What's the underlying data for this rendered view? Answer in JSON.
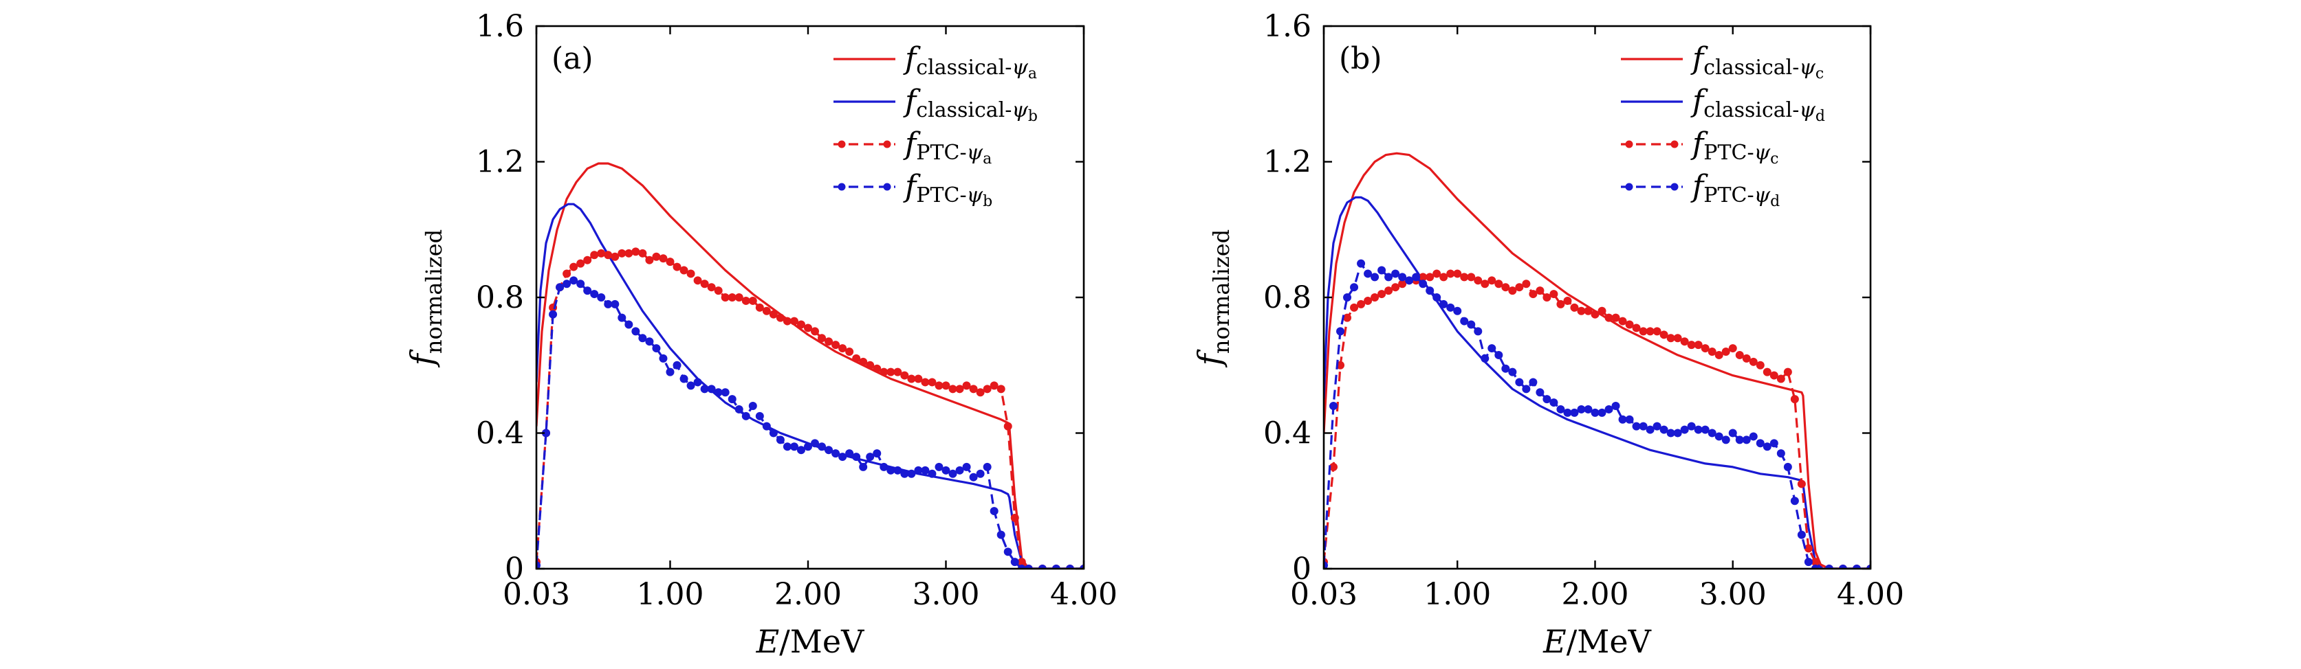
{
  "chart_data": [
    {
      "type": "line",
      "panel_label": "(a)",
      "xlabel_var": "E",
      "xlabel_unit": "/MeV",
      "ylabel_main": "f",
      "ylabel_sub": "normalized",
      "xlim": [
        0.03,
        4.0
      ],
      "ylim": [
        0,
        1.6
      ],
      "xticks": [
        0.03,
        1.0,
        2.0,
        3.0,
        4.0
      ],
      "xtick_labels": [
        "0.03",
        "1.00",
        "2.00",
        "3.00",
        "4.00"
      ],
      "yticks": [
        0,
        0.4,
        0.8,
        1.2,
        1.6
      ],
      "ytick_labels": [
        "0",
        "0.4",
        "0.8",
        "1.2",
        "1.6"
      ],
      "legend_position": "top-right",
      "series": [
        {
          "name": "f classical-ψa",
          "name_main": "f",
          "name_sub": "classical-",
          "name_psi": "ψ",
          "name_psi_sub": "a",
          "color": "#e41a1c",
          "style": "solid",
          "markers": false,
          "x": [
            0.03,
            0.07,
            0.12,
            0.18,
            0.25,
            0.32,
            0.4,
            0.48,
            0.55,
            0.65,
            0.8,
            1.0,
            1.2,
            1.4,
            1.6,
            1.8,
            2.0,
            2.2,
            2.4,
            2.6,
            2.8,
            3.0,
            3.2,
            3.4,
            3.45,
            3.46,
            3.5,
            3.55,
            3.6,
            4.0
          ],
          "y": [
            0.42,
            0.7,
            0.88,
            1.0,
            1.09,
            1.14,
            1.18,
            1.195,
            1.195,
            1.18,
            1.13,
            1.04,
            0.96,
            0.88,
            0.81,
            0.75,
            0.69,
            0.64,
            0.6,
            0.56,
            0.53,
            0.5,
            0.47,
            0.44,
            0.43,
            0.42,
            0.21,
            0.03,
            0.0,
            0.0
          ]
        },
        {
          "name": "f classical-ψb",
          "name_main": "f",
          "name_sub": "classical-",
          "name_psi": "ψ",
          "name_psi_sub": "b",
          "color": "#1919d2",
          "style": "solid",
          "markers": false,
          "x": [
            0.03,
            0.06,
            0.1,
            0.15,
            0.2,
            0.26,
            0.3,
            0.35,
            0.42,
            0.5,
            0.65,
            0.8,
            1.0,
            1.2,
            1.4,
            1.6,
            1.8,
            2.0,
            2.2,
            2.4,
            2.6,
            2.8,
            3.0,
            3.2,
            3.4,
            3.45,
            3.46,
            3.5,
            3.55,
            3.6,
            4.0
          ],
          "y": [
            0.55,
            0.82,
            0.96,
            1.03,
            1.06,
            1.075,
            1.075,
            1.06,
            1.02,
            0.96,
            0.86,
            0.76,
            0.65,
            0.56,
            0.49,
            0.44,
            0.4,
            0.37,
            0.34,
            0.32,
            0.3,
            0.28,
            0.265,
            0.25,
            0.23,
            0.22,
            0.21,
            0.1,
            0.02,
            0.0,
            0.0
          ]
        },
        {
          "name": "f PTC-ψa",
          "name_main": "f",
          "name_sub": "PTC-",
          "name_psi": "ψ",
          "name_psi_sub": "a",
          "color": "#e41a1c",
          "style": "dashed",
          "markers": true,
          "x": [
            0.03,
            0.1,
            0.15,
            0.2,
            0.25,
            0.3,
            0.35,
            0.4,
            0.45,
            0.5,
            0.55,
            0.6,
            0.65,
            0.7,
            0.75,
            0.8,
            0.85,
            0.9,
            0.95,
            1.0,
            1.05,
            1.1,
            1.15,
            1.2,
            1.25,
            1.3,
            1.35,
            1.4,
            1.45,
            1.5,
            1.55,
            1.6,
            1.65,
            1.7,
            1.75,
            1.8,
            1.85,
            1.9,
            1.95,
            2.0,
            2.05,
            2.1,
            2.15,
            2.2,
            2.25,
            2.3,
            2.35,
            2.4,
            2.45,
            2.5,
            2.55,
            2.6,
            2.65,
            2.7,
            2.75,
            2.8,
            2.85,
            2.9,
            2.95,
            3.0,
            3.05,
            3.1,
            3.15,
            3.2,
            3.25,
            3.3,
            3.35,
            3.4,
            3.45,
            3.5,
            3.55,
            3.6,
            3.7,
            3.8,
            3.9,
            4.0
          ],
          "y": [
            0.02,
            0.4,
            0.77,
            0.83,
            0.87,
            0.89,
            0.9,
            0.91,
            0.925,
            0.93,
            0.925,
            0.92,
            0.93,
            0.93,
            0.935,
            0.93,
            0.91,
            0.92,
            0.915,
            0.905,
            0.89,
            0.88,
            0.87,
            0.85,
            0.84,
            0.83,
            0.82,
            0.8,
            0.8,
            0.8,
            0.79,
            0.79,
            0.77,
            0.76,
            0.75,
            0.74,
            0.73,
            0.73,
            0.72,
            0.71,
            0.7,
            0.68,
            0.67,
            0.66,
            0.65,
            0.64,
            0.62,
            0.61,
            0.6,
            0.59,
            0.58,
            0.58,
            0.58,
            0.57,
            0.56,
            0.56,
            0.55,
            0.55,
            0.54,
            0.54,
            0.53,
            0.53,
            0.54,
            0.53,
            0.52,
            0.53,
            0.54,
            0.53,
            0.42,
            0.15,
            0.02,
            0.0,
            0.0,
            0.0,
            0.0,
            0.0
          ]
        },
        {
          "name": "f PTC-ψb",
          "name_main": "f",
          "name_sub": "PTC-",
          "name_psi": "ψ",
          "name_psi_sub": "b",
          "color": "#1919d2",
          "style": "dashed",
          "markers": true,
          "x": [
            0.03,
            0.1,
            0.15,
            0.2,
            0.25,
            0.3,
            0.35,
            0.4,
            0.45,
            0.5,
            0.55,
            0.6,
            0.65,
            0.7,
            0.75,
            0.8,
            0.85,
            0.9,
            0.95,
            1.0,
            1.05,
            1.1,
            1.15,
            1.2,
            1.25,
            1.3,
            1.35,
            1.4,
            1.45,
            1.5,
            1.55,
            1.6,
            1.65,
            1.7,
            1.75,
            1.8,
            1.85,
            1.9,
            1.95,
            2.0,
            2.05,
            2.1,
            2.15,
            2.2,
            2.25,
            2.3,
            2.35,
            2.4,
            2.45,
            2.5,
            2.55,
            2.6,
            2.65,
            2.7,
            2.75,
            2.8,
            2.85,
            2.9,
            2.95,
            3.0,
            3.05,
            3.1,
            3.15,
            3.2,
            3.25,
            3.3,
            3.35,
            3.4,
            3.45,
            3.5,
            3.55,
            3.6,
            3.7,
            3.8,
            3.9,
            4.0
          ],
          "y": [
            0.01,
            0.4,
            0.75,
            0.83,
            0.84,
            0.85,
            0.84,
            0.82,
            0.81,
            0.8,
            0.78,
            0.78,
            0.74,
            0.72,
            0.7,
            0.68,
            0.67,
            0.65,
            0.62,
            0.58,
            0.6,
            0.56,
            0.54,
            0.55,
            0.53,
            0.53,
            0.52,
            0.52,
            0.5,
            0.47,
            0.45,
            0.48,
            0.45,
            0.42,
            0.4,
            0.38,
            0.36,
            0.36,
            0.35,
            0.36,
            0.37,
            0.36,
            0.35,
            0.34,
            0.33,
            0.34,
            0.33,
            0.3,
            0.33,
            0.34,
            0.3,
            0.29,
            0.29,
            0.28,
            0.28,
            0.29,
            0.29,
            0.28,
            0.3,
            0.29,
            0.28,
            0.29,
            0.3,
            0.27,
            0.28,
            0.3,
            0.17,
            0.1,
            0.05,
            0.02,
            0.0,
            0.0,
            0.0,
            0.0,
            0.0,
            0.0
          ]
        }
      ]
    },
    {
      "type": "line",
      "panel_label": "(b)",
      "xlabel_var": "E",
      "xlabel_unit": "/MeV",
      "ylabel_main": "f",
      "ylabel_sub": "normalized",
      "xlim": [
        0.03,
        4.0
      ],
      "ylim": [
        0,
        1.6
      ],
      "xticks": [
        0.03,
        1.0,
        2.0,
        3.0,
        4.0
      ],
      "xtick_labels": [
        "0.03",
        "1.00",
        "2.00",
        "3.00",
        "4.00"
      ],
      "yticks": [
        0,
        0.4,
        0.8,
        1.2,
        1.6
      ],
      "ytick_labels": [
        "0",
        "0.4",
        "0.8",
        "1.2",
        "1.6"
      ],
      "legend_position": "top-right",
      "series": [
        {
          "name": "f classical-ψc",
          "name_main": "f",
          "name_sub": "classical-",
          "name_psi": "ψ",
          "name_psi_sub": "c",
          "color": "#e41a1c",
          "style": "solid",
          "markers": false,
          "x": [
            0.03,
            0.07,
            0.12,
            0.18,
            0.25,
            0.32,
            0.4,
            0.48,
            0.56,
            0.65,
            0.8,
            1.0,
            1.2,
            1.4,
            1.6,
            1.8,
            2.0,
            2.2,
            2.4,
            2.6,
            2.8,
            3.0,
            3.2,
            3.4,
            3.5,
            3.51,
            3.55,
            3.6,
            3.65,
            4.0
          ],
          "y": [
            0.4,
            0.7,
            0.9,
            1.02,
            1.11,
            1.16,
            1.2,
            1.22,
            1.225,
            1.22,
            1.18,
            1.09,
            1.01,
            0.93,
            0.87,
            0.81,
            0.76,
            0.71,
            0.67,
            0.63,
            0.6,
            0.57,
            0.55,
            0.53,
            0.52,
            0.51,
            0.25,
            0.05,
            0.0,
            0.0
          ]
        },
        {
          "name": "f classical-ψd",
          "name_main": "f",
          "name_sub": "classical-",
          "name_psi": "ψ",
          "name_psi_sub": "d",
          "color": "#1919d2",
          "style": "solid",
          "markers": false,
          "x": [
            0.03,
            0.06,
            0.1,
            0.15,
            0.2,
            0.26,
            0.3,
            0.35,
            0.42,
            0.5,
            0.65,
            0.8,
            1.0,
            1.2,
            1.4,
            1.6,
            1.8,
            2.0,
            2.2,
            2.4,
            2.6,
            2.8,
            3.0,
            3.2,
            3.4,
            3.5,
            3.51,
            3.55,
            3.6,
            3.65,
            4.0
          ],
          "y": [
            0.5,
            0.8,
            0.96,
            1.04,
            1.08,
            1.095,
            1.095,
            1.085,
            1.05,
            1.0,
            0.91,
            0.82,
            0.7,
            0.61,
            0.53,
            0.48,
            0.44,
            0.41,
            0.38,
            0.35,
            0.33,
            0.31,
            0.3,
            0.28,
            0.27,
            0.26,
            0.25,
            0.12,
            0.02,
            0.0,
            0.0
          ]
        },
        {
          "name": "f PTC-ψc",
          "name_main": "f",
          "name_sub": "PTC-",
          "name_psi": "ψ",
          "name_psi_sub": "c",
          "color": "#e41a1c",
          "style": "dashed",
          "markers": true,
          "x": [
            0.03,
            0.1,
            0.15,
            0.2,
            0.25,
            0.3,
            0.35,
            0.4,
            0.45,
            0.5,
            0.55,
            0.6,
            0.65,
            0.7,
            0.75,
            0.8,
            0.85,
            0.9,
            0.95,
            1.0,
            1.05,
            1.1,
            1.15,
            1.2,
            1.25,
            1.3,
            1.35,
            1.4,
            1.45,
            1.5,
            1.55,
            1.6,
            1.65,
            1.7,
            1.75,
            1.8,
            1.85,
            1.9,
            1.95,
            2.0,
            2.05,
            2.1,
            2.15,
            2.2,
            2.25,
            2.3,
            2.35,
            2.4,
            2.45,
            2.5,
            2.55,
            2.6,
            2.65,
            2.7,
            2.75,
            2.8,
            2.85,
            2.9,
            2.95,
            3.0,
            3.05,
            3.1,
            3.15,
            3.2,
            3.25,
            3.3,
            3.35,
            3.4,
            3.45,
            3.5,
            3.55,
            3.6,
            3.7,
            3.8,
            3.9,
            4.0
          ],
          "y": [
            0.02,
            0.3,
            0.6,
            0.74,
            0.77,
            0.78,
            0.79,
            0.8,
            0.81,
            0.82,
            0.83,
            0.84,
            0.85,
            0.85,
            0.86,
            0.86,
            0.87,
            0.86,
            0.87,
            0.87,
            0.86,
            0.86,
            0.85,
            0.84,
            0.85,
            0.84,
            0.83,
            0.82,
            0.83,
            0.84,
            0.81,
            0.82,
            0.8,
            0.81,
            0.78,
            0.79,
            0.77,
            0.76,
            0.76,
            0.75,
            0.76,
            0.74,
            0.74,
            0.73,
            0.72,
            0.71,
            0.7,
            0.7,
            0.7,
            0.69,
            0.68,
            0.68,
            0.67,
            0.66,
            0.66,
            0.65,
            0.64,
            0.63,
            0.64,
            0.65,
            0.63,
            0.62,
            0.61,
            0.6,
            0.58,
            0.57,
            0.56,
            0.58,
            0.5,
            0.25,
            0.06,
            0.02,
            0.0,
            0.0,
            0.0,
            0.0
          ]
        },
        {
          "name": "f PTC-ψd",
          "name_main": "f",
          "name_sub": "PTC-",
          "name_psi": "ψ",
          "name_psi_sub": "d",
          "color": "#1919d2",
          "style": "dashed",
          "markers": true,
          "x": [
            0.03,
            0.1,
            0.15,
            0.2,
            0.25,
            0.3,
            0.35,
            0.4,
            0.45,
            0.5,
            0.55,
            0.6,
            0.65,
            0.7,
            0.75,
            0.8,
            0.85,
            0.9,
            0.95,
            1.0,
            1.05,
            1.1,
            1.15,
            1.2,
            1.25,
            1.3,
            1.35,
            1.4,
            1.45,
            1.5,
            1.55,
            1.6,
            1.65,
            1.7,
            1.75,
            1.8,
            1.85,
            1.9,
            1.95,
            2.0,
            2.05,
            2.1,
            2.15,
            2.2,
            2.25,
            2.3,
            2.35,
            2.4,
            2.45,
            2.5,
            2.55,
            2.6,
            2.65,
            2.7,
            2.75,
            2.8,
            2.85,
            2.9,
            2.95,
            3.0,
            3.05,
            3.1,
            3.15,
            3.2,
            3.25,
            3.3,
            3.35,
            3.4,
            3.45,
            3.5,
            3.55,
            3.6,
            3.7,
            3.8,
            3.9,
            4.0
          ],
          "y": [
            0.01,
            0.48,
            0.7,
            0.8,
            0.83,
            0.9,
            0.87,
            0.86,
            0.88,
            0.86,
            0.87,
            0.86,
            0.85,
            0.86,
            0.84,
            0.82,
            0.8,
            0.78,
            0.77,
            0.76,
            0.73,
            0.72,
            0.7,
            0.62,
            0.65,
            0.63,
            0.59,
            0.58,
            0.55,
            0.53,
            0.55,
            0.52,
            0.5,
            0.49,
            0.47,
            0.46,
            0.46,
            0.47,
            0.47,
            0.46,
            0.46,
            0.47,
            0.48,
            0.44,
            0.44,
            0.42,
            0.42,
            0.41,
            0.42,
            0.41,
            0.4,
            0.4,
            0.41,
            0.42,
            0.41,
            0.41,
            0.4,
            0.39,
            0.38,
            0.4,
            0.38,
            0.38,
            0.39,
            0.37,
            0.36,
            0.37,
            0.34,
            0.3,
            0.2,
            0.1,
            0.02,
            0.0,
            0.0,
            0.0,
            0.0,
            0.0
          ]
        }
      ]
    }
  ]
}
